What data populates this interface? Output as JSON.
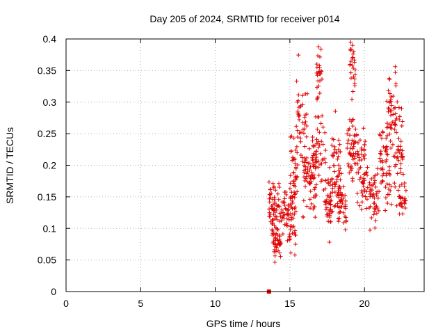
{
  "chart_data": {
    "type": "scatter",
    "title": "Day 205 of 2024, SRMTID for receiver p014",
    "xlabel": "GPS time / hours",
    "ylabel": "SRMTID / TECUs",
    "xlim": [
      0,
      24
    ],
    "ylim": [
      0,
      0.4
    ],
    "x_ticks": [
      0,
      5,
      10,
      15,
      20
    ],
    "x_tick_labels": [
      "0",
      "5",
      "10",
      "15",
      "20"
    ],
    "y_ticks": [
      0,
      0.05,
      0.1,
      0.15,
      0.2,
      0.25,
      0.3,
      0.35,
      0.4
    ],
    "y_tick_labels": [
      "0",
      "0.05",
      "0.1",
      "0.15",
      "0.2",
      "0.25",
      "0.3",
      "0.35",
      "0.4"
    ],
    "grid": true,
    "marker": "+",
    "color": "#e00000",
    "series": [
      {
        "name": "SRMTID",
        "clusters": [
          {
            "x_range": [
              13.6,
              14.0
            ],
            "center": 0.135,
            "spread": 0.03,
            "count": 40
          },
          {
            "x_range": [
              13.8,
              14.4
            ],
            "center": 0.085,
            "spread": 0.02,
            "count": 45
          },
          {
            "x_range": [
              14.0,
              14.8
            ],
            "center": 0.13,
            "spread": 0.03,
            "count": 40
          },
          {
            "x_range": [
              14.8,
              15.4
            ],
            "center": 0.12,
            "spread": 0.04,
            "count": 50
          },
          {
            "x_range": [
              15.0,
              15.5
            ],
            "center": 0.19,
            "spread": 0.04,
            "count": 35
          },
          {
            "x_range": [
              15.4,
              16.2
            ],
            "center": 0.27,
            "spread": 0.06,
            "count": 45
          },
          {
            "x_range": [
              15.8,
              16.8
            ],
            "center": 0.18,
            "spread": 0.04,
            "count": 60
          },
          {
            "x_range": [
              16.5,
              17.4
            ],
            "center": 0.22,
            "spread": 0.04,
            "count": 55
          },
          {
            "x_range": [
              16.8,
              17.2
            ],
            "center": 0.34,
            "spread": 0.03,
            "count": 25
          },
          {
            "x_range": [
              17.3,
              17.8
            ],
            "center": 0.14,
            "spread": 0.03,
            "count": 40
          },
          {
            "x_range": [
              17.8,
              18.4
            ],
            "center": 0.2,
            "spread": 0.05,
            "count": 50
          },
          {
            "x_range": [
              18.2,
              18.8
            ],
            "center": 0.14,
            "spread": 0.03,
            "count": 45
          },
          {
            "x_range": [
              18.8,
              19.5
            ],
            "center": 0.23,
            "spread": 0.04,
            "count": 50
          },
          {
            "x_range": [
              19.0,
              19.4
            ],
            "center": 0.35,
            "spread": 0.03,
            "count": 25
          },
          {
            "x_range": [
              19.5,
              20.3
            ],
            "center": 0.19,
            "spread": 0.04,
            "count": 55
          },
          {
            "x_range": [
              20.3,
              21.0
            ],
            "center": 0.15,
            "spread": 0.03,
            "count": 45
          },
          {
            "x_range": [
              21.0,
              21.8
            ],
            "center": 0.2,
            "spread": 0.05,
            "count": 55
          },
          {
            "x_range": [
              21.5,
              22.2
            ],
            "center": 0.29,
            "spread": 0.05,
            "count": 40
          },
          {
            "x_range": [
              22.0,
              22.6
            ],
            "center": 0.22,
            "spread": 0.05,
            "count": 45
          },
          {
            "x_range": [
              22.3,
              22.8
            ],
            "center": 0.14,
            "spread": 0.02,
            "count": 25
          }
        ],
        "seed": 205
      }
    ],
    "special_points": [
      {
        "x": 13.6,
        "y": 0.0,
        "marker": "square"
      }
    ]
  }
}
